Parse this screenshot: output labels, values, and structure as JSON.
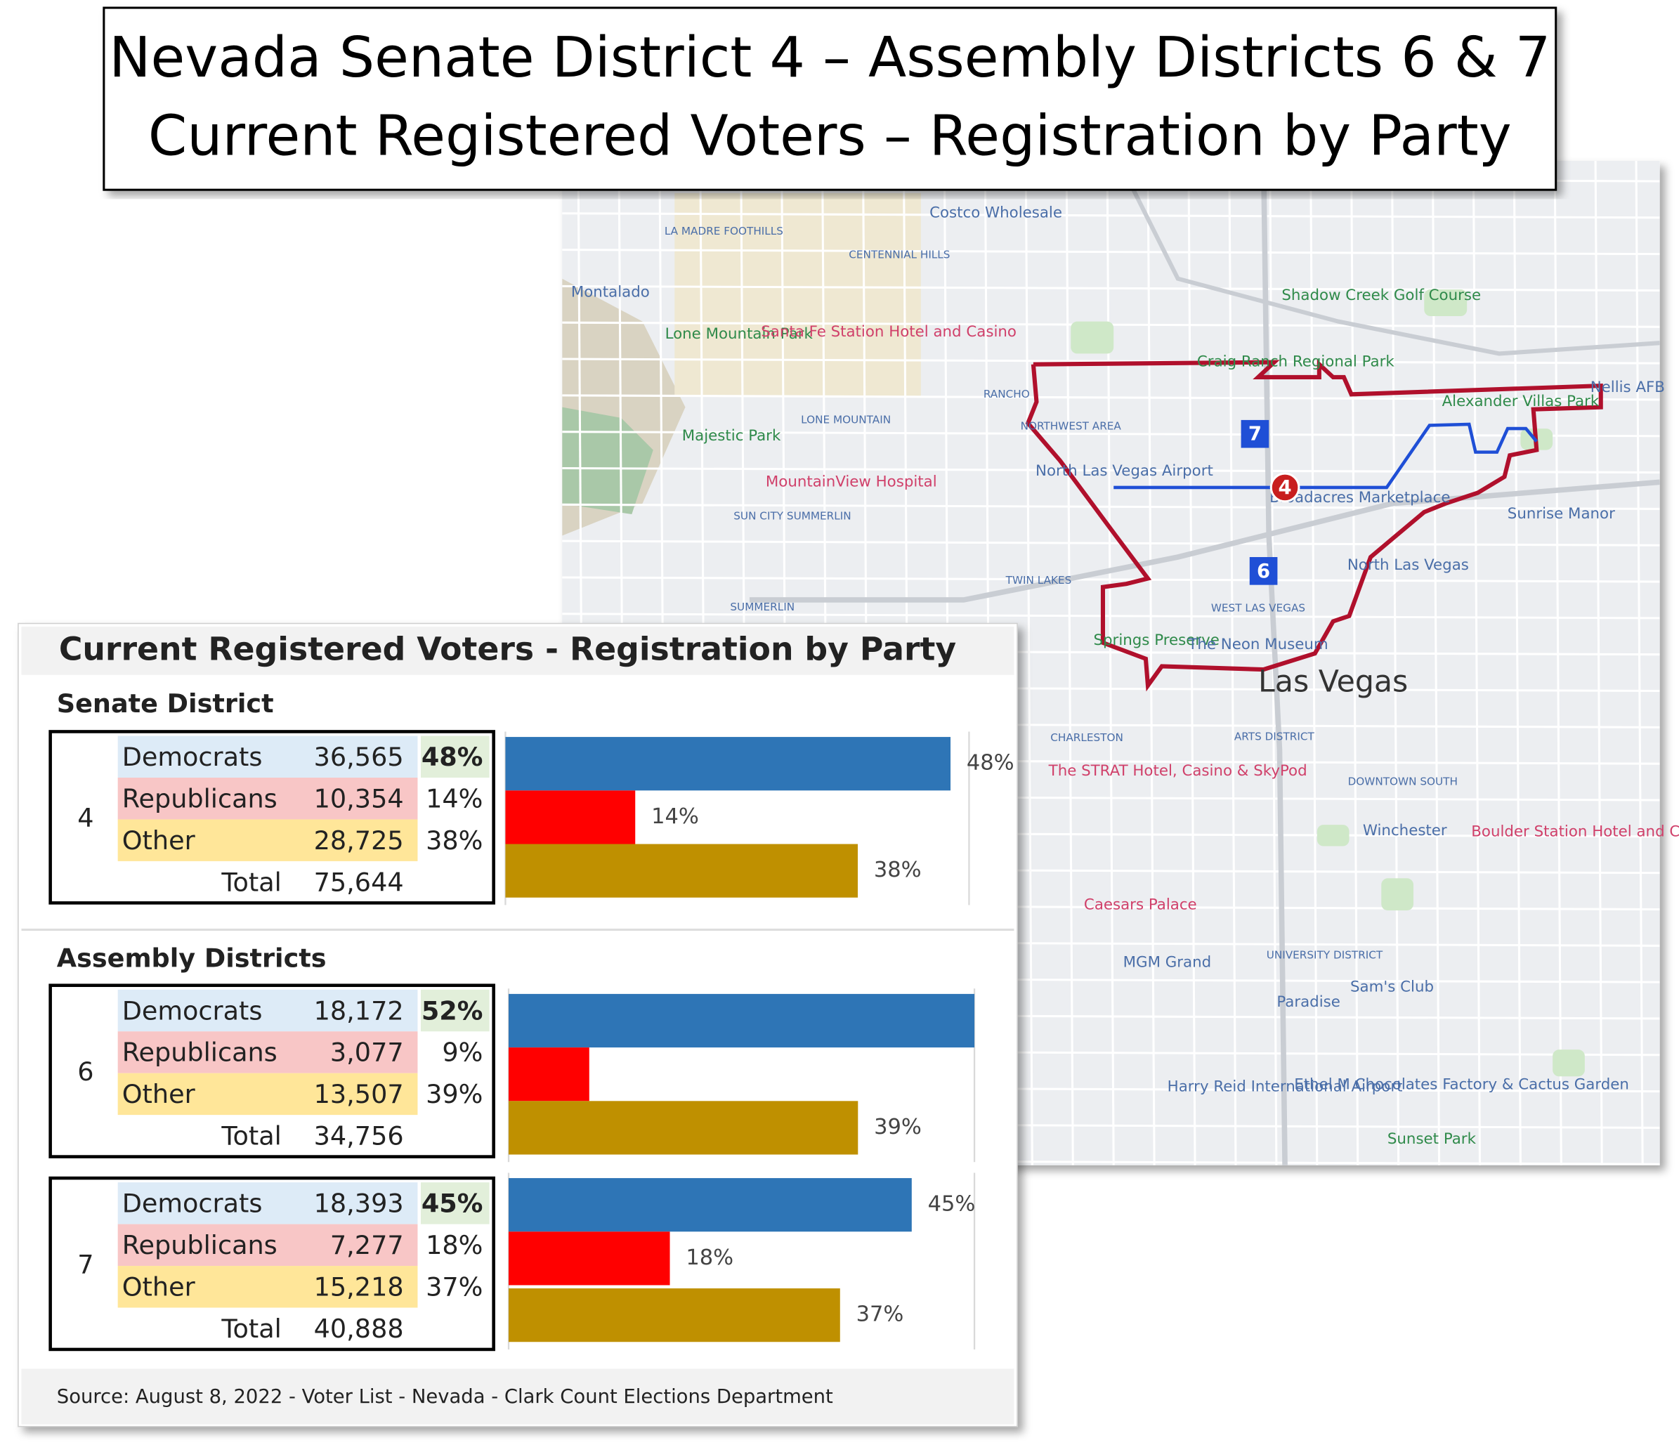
{
  "header": {
    "lines": [
      "Nevada Senate District 4 – Assembly Districts 6 & 7",
      "Current Registered Voters – Registration by Party"
    ]
  },
  "panel": {
    "title": "Current Registered Voters - Registration by Party",
    "source": "Source: August 8, 2022 - Voter List - Nevada - Clark Count Elections Department"
  },
  "sections": [
    {
      "heading": "Senate District",
      "tables": [
        {
          "district": "4",
          "rows": [
            [
              "Democrats",
              "36,565",
              "48%"
            ],
            [
              "Republicans",
              "10,354",
              "14%"
            ],
            [
              "Other",
              "28,725",
              "38%"
            ],
            [
              "Total",
              "75,644"
            ]
          ]
        }
      ]
    },
    {
      "heading": "Assembly Districts",
      "tables": [
        {
          "district": "6",
          "rows": [
            [
              "Democrats",
              "18,172",
              "52%"
            ],
            [
              "Republicans",
              "3,077",
              "9%"
            ],
            [
              "Other",
              "13,507",
              "39%"
            ],
            [
              "Total",
              "34,756"
            ]
          ]
        },
        {
          "district": "7",
          "rows": [
            [
              "Democrats",
              "18,393",
              "45%"
            ],
            [
              "Republicans",
              "7,277",
              "18%"
            ],
            [
              "Other",
              "15,218",
              "37%"
            ],
            [
              "Total",
              "40,888"
            ]
          ]
        }
      ]
    }
  ],
  "chart_data": [
    {
      "type": "bar",
      "orientation": "horizontal",
      "values": [
        48,
        14,
        38
      ],
      "value_labels": [
        "48%",
        "14%",
        "38%"
      ],
      "colors": [
        "#2e75b6",
        "#ff0000",
        "#bf9000"
      ],
      "xlim": [
        0,
        50
      ]
    },
    {
      "type": "bar",
      "orientation": "horizontal",
      "values": [
        52,
        9,
        39
      ],
      "value_labels": [
        null,
        null,
        "39%"
      ],
      "colors": [
        "#2e75b6",
        "#ff0000",
        "#bf9000"
      ],
      "xlim": [
        0,
        52
      ]
    },
    {
      "type": "bar",
      "orientation": "horizontal",
      "values": [
        45,
        18,
        37
      ],
      "value_labels": [
        "45%",
        "18%",
        "37%"
      ],
      "colors": [
        "#2e75b6",
        "#ff0000",
        "#bf9000"
      ],
      "xlim": [
        0,
        52
      ]
    }
  ],
  "map": {
    "labels": [
      "Costco Wholesale",
      "LA MADRE FOOTHILLS",
      "CENTENNIAL HILLS",
      "Montalado",
      "Shadow Creek Golf Course",
      "Lone Mountain Park",
      "Santa Fe Station Hotel and Casino",
      "Craig Ranch Regional Park",
      "Alexander Villas Park",
      "Nellis AFB",
      "RANCHO",
      "NORTHWEST AREA",
      "LONE MOUNTAIN",
      "Majestic Park",
      "North Las Vegas Airport",
      "MountainView Hospital",
      "Broadacres Marketplace",
      "Sunrise Manor",
      "SUN CITY SUMMERLIN",
      "North Las Vegas",
      "TWIN LAKES",
      "SUMMERLIN",
      "WEST LAS VEGAS",
      "Springs Preserve",
      "The Neon Museum",
      "Las Vegas",
      "CHARLESTON",
      "ARTS DISTRICT",
      "The STRAT Hotel, Casino & SkyPod",
      "DOWNTOWN SOUTH",
      "Winchester",
      "Boulder Station Hotel and Casino",
      "Caesars Palace",
      "UNIVERSITY DISTRICT",
      "MGM Grand",
      "Sam's Club",
      "Paradise",
      "Harry Reid International Airport",
      "Ethel M Chocolates Factory & Cactus Garden",
      "Sunset Park"
    ],
    "district_markers": [
      "7",
      "4",
      "6"
    ]
  }
}
